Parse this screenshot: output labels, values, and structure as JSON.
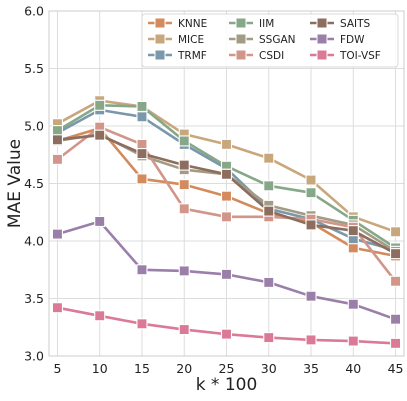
{
  "chart_data": {
    "type": "line",
    "title": "",
    "xlabel": "k * 100",
    "ylabel": "MAE Value",
    "x": [
      5,
      10,
      15,
      20,
      25,
      30,
      35,
      40,
      45
    ],
    "xlim": [
      4,
      46
    ],
    "ylim": [
      3.0,
      6.0
    ],
    "yticks": [
      3.0,
      3.5,
      4.0,
      4.5,
      5.0,
      5.5,
      6.0
    ],
    "grid": true,
    "legend_position": "top-right",
    "legend_columns": 3,
    "series": [
      {
        "name": "KNNE",
        "color": "#d38b5d",
        "values": [
          4.87,
          4.98,
          4.54,
          4.49,
          4.39,
          4.24,
          4.16,
          3.94,
          3.87
        ]
      },
      {
        "name": "MICE",
        "color": "#c9a77c",
        "values": [
          5.02,
          5.22,
          5.17,
          4.93,
          4.84,
          4.72,
          4.53,
          4.21,
          4.08
        ]
      },
      {
        "name": "TRMF",
        "color": "#7a98ab",
        "values": [
          4.94,
          5.14,
          5.08,
          4.84,
          4.63,
          4.28,
          4.19,
          4.02,
          3.92
        ]
      },
      {
        "name": "IIM",
        "color": "#86a889",
        "values": [
          4.96,
          5.18,
          5.17,
          4.87,
          4.65,
          4.48,
          4.42,
          4.18,
          3.94
        ]
      },
      {
        "name": "SSGAN",
        "color": "#a39c84",
        "values": [
          4.87,
          4.93,
          4.74,
          4.62,
          4.58,
          4.31,
          4.22,
          4.14,
          3.91
        ]
      },
      {
        "name": "CSDI",
        "color": "#d2958a",
        "values": [
          4.71,
          4.99,
          4.84,
          4.28,
          4.21,
          4.21,
          4.19,
          4.12,
          3.65
        ]
      },
      {
        "name": "SAITS",
        "color": "#8c6d5e",
        "values": [
          4.88,
          4.92,
          4.76,
          4.66,
          4.58,
          4.26,
          4.14,
          4.09,
          3.89
        ]
      },
      {
        "name": "FDW",
        "color": "#9a7fa9",
        "values": [
          4.06,
          4.17,
          3.75,
          3.74,
          3.71,
          3.64,
          3.52,
          3.45,
          3.32
        ]
      },
      {
        "name": "TOI-VSF",
        "color": "#db7a97",
        "values": [
          3.42,
          3.35,
          3.28,
          3.23,
          3.19,
          3.16,
          3.14,
          3.13,
          3.11
        ]
      }
    ]
  }
}
